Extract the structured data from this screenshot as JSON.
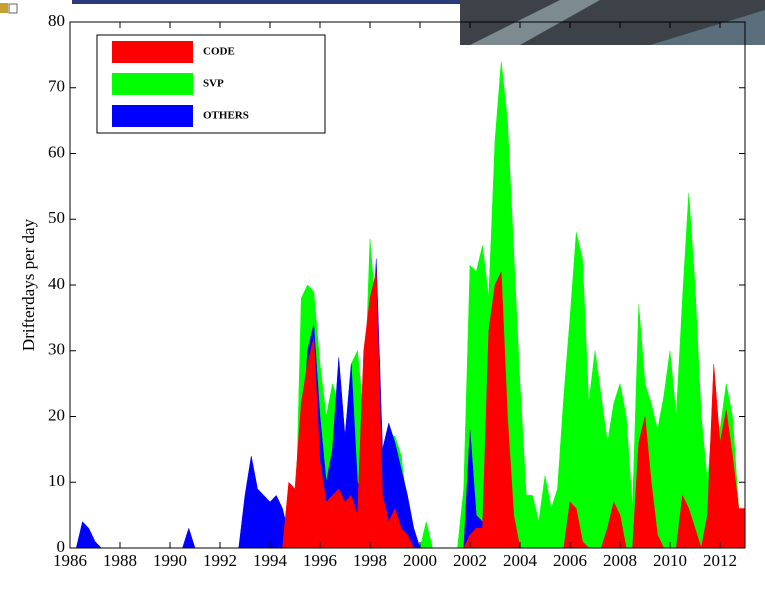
{
  "chart_data": {
    "type": "area",
    "ylabel": "Drifterdays per day",
    "x": [
      1986,
      1986.25,
      1986.5,
      1986.75,
      1987,
      1987.25,
      1987.5,
      1987.75,
      1988,
      1988.25,
      1988.5,
      1988.75,
      1989,
      1989.25,
      1989.5,
      1989.75,
      1990,
      1990.25,
      1990.5,
      1990.75,
      1991,
      1991.25,
      1991.5,
      1991.75,
      1992,
      1992.25,
      1992.5,
      1992.75,
      1993,
      1993.25,
      1993.5,
      1993.75,
      1994,
      1994.25,
      1994.5,
      1994.75,
      1995,
      1995.25,
      1995.5,
      1995.75,
      1996,
      1996.25,
      1996.5,
      1996.75,
      1997,
      1997.25,
      1997.5,
      1997.75,
      1998,
      1998.25,
      1998.5,
      1998.75,
      1999,
      1999.25,
      1999.5,
      1999.75,
      2000,
      2000.25,
      2000.5,
      2000.75,
      2001,
      2001.25,
      2001.5,
      2001.75,
      2002,
      2002.25,
      2002.5,
      2002.75,
      2003,
      2003.25,
      2003.5,
      2003.75,
      2004,
      2004.25,
      2004.5,
      2004.75,
      2005,
      2005.25,
      2005.5,
      2005.75,
      2006,
      2006.25,
      2006.5,
      2006.75,
      2007,
      2007.25,
      2007.5,
      2007.75,
      2008,
      2008.25,
      2008.5,
      2008.75,
      2009,
      2009.25,
      2009.5,
      2009.75,
      2010,
      2010.25,
      2010.5,
      2010.75,
      2011,
      2011.25,
      2011.5,
      2011.75,
      2012,
      2012.25,
      2012.5,
      2012.75,
      2013
    ],
    "series": [
      {
        "name": "SVP",
        "color": "#00ff00",
        "values": [
          0,
          0,
          0,
          0,
          0,
          0,
          0,
          0,
          0,
          0,
          0,
          0,
          0,
          0,
          0,
          0,
          0,
          0,
          0,
          0,
          0,
          0,
          0,
          0,
          0,
          0,
          0,
          0,
          0,
          0,
          0,
          0,
          0,
          0,
          0,
          0,
          0,
          38,
          40,
          39,
          28,
          20,
          25,
          22,
          16,
          28,
          30,
          20,
          47,
          35,
          13,
          17,
          17,
          14,
          6,
          3,
          0,
          4,
          0,
          0,
          0,
          0,
          0,
          9,
          43,
          42,
          46,
          38,
          62,
          74,
          65,
          45,
          25,
          8,
          8,
          4,
          11,
          6,
          9,
          23,
          35,
          48,
          44,
          22,
          30,
          23,
          16,
          22,
          25,
          20,
          6,
          37,
          25,
          22,
          18,
          23,
          30,
          20,
          38,
          54,
          40,
          20,
          10,
          22,
          18,
          25,
          20,
          6,
          0
        ]
      },
      {
        "name": "OTHERS",
        "color": "#0000ff",
        "values": [
          0,
          0,
          4,
          3,
          1,
          0,
          0,
          0,
          0,
          0,
          0,
          0,
          0,
          0,
          0,
          0,
          0,
          0,
          0,
          3,
          0,
          0,
          0,
          0,
          0,
          0,
          0,
          0,
          8,
          14,
          9,
          8,
          7,
          8,
          6,
          2,
          0,
          12,
          30,
          34,
          20,
          10,
          15,
          29,
          17,
          28,
          10,
          8,
          25,
          44,
          15,
          19,
          16,
          12,
          8,
          3,
          0,
          0,
          0,
          0,
          0,
          0,
          0,
          0,
          18,
          5,
          4,
          0,
          0,
          0,
          0,
          0,
          0,
          0,
          0,
          0,
          0,
          0,
          0,
          0,
          0,
          0,
          0,
          0,
          0,
          0,
          0,
          0,
          0,
          0,
          0,
          0,
          0,
          0,
          0,
          0,
          0,
          0,
          0,
          0,
          0,
          0,
          0,
          0,
          0,
          0,
          0,
          0,
          0
        ]
      },
      {
        "name": "CODE",
        "color": "#ff0000",
        "values": [
          0,
          0,
          0,
          0,
          0,
          0,
          0,
          0,
          0,
          0,
          0,
          0,
          0,
          0,
          0,
          0,
          0,
          0,
          0,
          0,
          0,
          0,
          0,
          0,
          0,
          0,
          0,
          0,
          0,
          0,
          0,
          0,
          0,
          0,
          0,
          10,
          9,
          22,
          28,
          32,
          13,
          7,
          8,
          9,
          7,
          8,
          5,
          30,
          38,
          42,
          8,
          4,
          6,
          3,
          2,
          0,
          0,
          0,
          0,
          0,
          0,
          0,
          0,
          0,
          2,
          3,
          3,
          33,
          40,
          42,
          20,
          5,
          0,
          0,
          0,
          0,
          0,
          0,
          0,
          0,
          7,
          6,
          1,
          0,
          0,
          0,
          3,
          7,
          5,
          0,
          0,
          16,
          20,
          10,
          2,
          0,
          0,
          0,
          8,
          6,
          3,
          0,
          5,
          28,
          16,
          21,
          14,
          6,
          6
        ]
      }
    ],
    "legend_order": [
      2,
      0,
      1
    ],
    "legend": "upper left",
    "xlim": [
      1986,
      2013
    ],
    "xticks": [
      1986,
      1988,
      1990,
      1992,
      1994,
      1996,
      1998,
      2000,
      2002,
      2004,
      2006,
      2008,
      2010,
      2012
    ],
    "ylim": [
      0,
      80
    ],
    "yticks": [
      0,
      10,
      20,
      30,
      40,
      50,
      60,
      70,
      80
    ]
  }
}
